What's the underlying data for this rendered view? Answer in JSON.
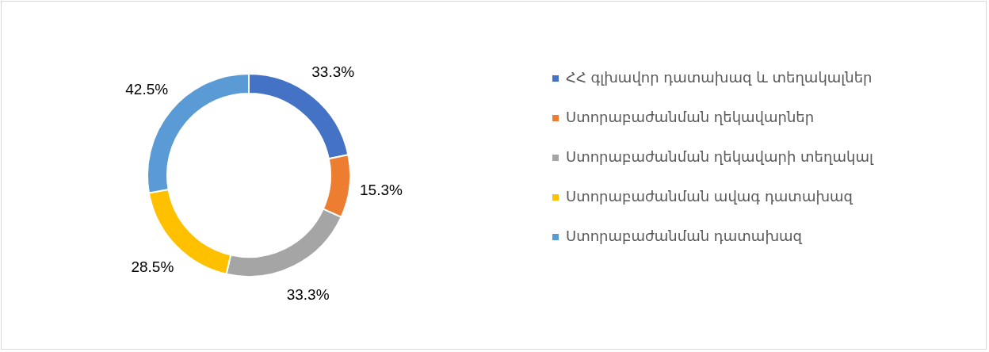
{
  "chart_data": {
    "type": "donut",
    "categories": [
      "ՀՀ գլխավոր դատախազ և տեղակալներ",
      "Ստորաբաժանման ղեկավարներ",
      "Ստորաբաժանման ղեկավարի տեղակալ",
      "Ստորաբաժանման ավագ դատախազ",
      "Ստորաբաժանման դատախազ"
    ],
    "values": [
      33.3,
      15.3,
      33.3,
      28.5,
      42.5
    ],
    "value_labels": [
      "33.3%",
      "15.3%",
      "33.3%",
      "28.5%",
      "42.5%"
    ],
    "colors": [
      "#4472c4",
      "#ed7d31",
      "#a5a5a5",
      "#ffc000",
      "#5b9bd5"
    ],
    "legend": "right"
  }
}
